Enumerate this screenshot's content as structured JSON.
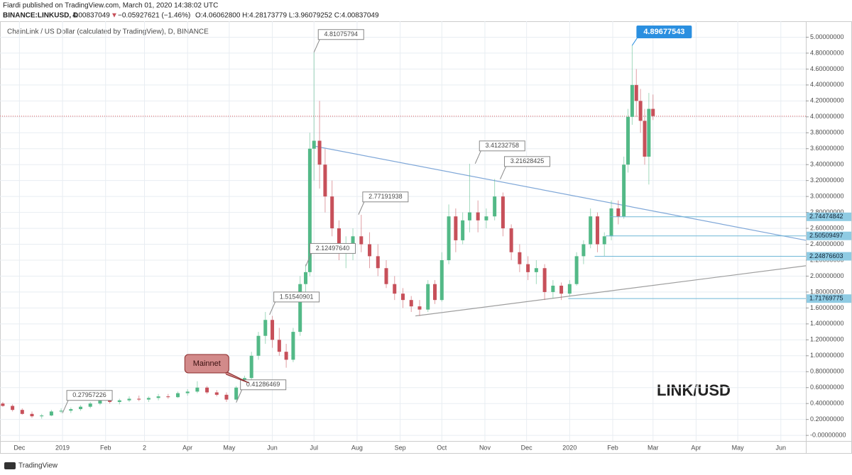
{
  "chart_data": {
    "type": "candlestick",
    "header": {
      "line1": "Fiardi published on TradingView.com, March 01, 2020 14:38:02 UTC",
      "symbol": "BINANCE:LINKUSD, D",
      "price": "4.00837049",
      "arrow": "▼",
      "change": "−0.05927621 (−1.46%)",
      "ohlc": "O:4.06062800 H:4.28173779 L:3.96079252 C:4.00837049"
    },
    "title": "ChainLink / US Dollar (calculated by TradingView), D, BINANCE",
    "watermark": "LINK/USD",
    "footer": "TradingView",
    "up_color": "#53b987",
    "down_color": "#c7505a",
    "xlim": [
      -14,
      566
    ],
    "xticks": [
      {
        "value": 0,
        "label": "Dec"
      },
      {
        "value": 31,
        "label": "2019"
      },
      {
        "value": 62,
        "label": "Feb"
      },
      {
        "value": 90,
        "label": "2"
      },
      {
        "value": 121,
        "label": "Apr"
      },
      {
        "value": 151,
        "label": "May"
      },
      {
        "value": 182,
        "label": "Jun"
      },
      {
        "value": 212,
        "label": "Jul"
      },
      {
        "value": 243,
        "label": "Aug"
      },
      {
        "value": 274,
        "label": "Sep"
      },
      {
        "value": 304,
        "label": "Oct"
      },
      {
        "value": 335,
        "label": "Nov"
      },
      {
        "value": 365,
        "label": "Dec"
      },
      {
        "value": 396,
        "label": "2020"
      },
      {
        "value": 427,
        "label": "Feb"
      },
      {
        "value": 456,
        "label": "Mar"
      },
      {
        "value": 487,
        "label": "Apr"
      },
      {
        "value": 517,
        "label": "May"
      },
      {
        "value": 548,
        "label": "Jun"
      }
    ],
    "ylim": [
      -0.07,
      5.2
    ],
    "yticks": [
      {
        "value": 0,
        "label": "-0.00000000"
      },
      {
        "value": 0.2,
        "label": "0.20000000"
      },
      {
        "value": 0.4,
        "label": "0.40000000"
      },
      {
        "value": 0.6,
        "label": "0.60000000"
      },
      {
        "value": 0.8,
        "label": "0.80000000"
      },
      {
        "value": 1,
        "label": "1.00000000"
      },
      {
        "value": 1.2,
        "label": "1.20000000"
      },
      {
        "value": 1.4,
        "label": "1.40000000"
      },
      {
        "value": 1.6,
        "label": "1.60000000"
      },
      {
        "value": 1.8,
        "label": "1.80000000"
      },
      {
        "value": 2,
        "label": "2.00000000"
      },
      {
        "value": 2.2,
        "label": "2.20000000"
      },
      {
        "value": 2.4,
        "label": "2.40000000"
      },
      {
        "value": 2.6,
        "label": "2.60000000"
      },
      {
        "value": 2.8,
        "label": "2.80000000"
      },
      {
        "value": 3,
        "label": "3.00000000"
      },
      {
        "value": 3.2,
        "label": "3.20000000"
      },
      {
        "value": 3.4,
        "label": "3.40000000"
      },
      {
        "value": 3.6,
        "label": "3.60000000"
      },
      {
        "value": 3.8,
        "label": "3.80000000"
      },
      {
        "value": 4,
        "label": "4.00000000"
      },
      {
        "value": 4.2,
        "label": "4.20000000"
      },
      {
        "value": 4.4,
        "label": "4.40000000"
      },
      {
        "value": 4.6,
        "label": "4.60000000"
      },
      {
        "value": 4.8,
        "label": "4.80000000"
      },
      {
        "value": 5,
        "label": "5.00000000"
      }
    ],
    "grid": true,
    "candles": [
      {
        "x": -12,
        "open": 0.4,
        "high": 0.42,
        "low": 0.36,
        "close": 0.37
      },
      {
        "x": -5,
        "open": 0.37,
        "high": 0.39,
        "low": 0.3,
        "close": 0.32
      },
      {
        "x": 2,
        "open": 0.32,
        "high": 0.34,
        "low": 0.26,
        "close": 0.27
      },
      {
        "x": 9,
        "open": 0.27,
        "high": 0.3,
        "low": 0.22,
        "close": 0.24
      },
      {
        "x": 16,
        "open": 0.24,
        "high": 0.27,
        "low": 0.21,
        "close": 0.25
      },
      {
        "x": 23,
        "open": 0.25,
        "high": 0.32,
        "low": 0.24,
        "close": 0.3
      },
      {
        "x": 30,
        "open": 0.3,
        "high": 0.34,
        "low": 0.28,
        "close": 0.31
      },
      {
        "x": 37,
        "open": 0.31,
        "high": 0.35,
        "low": 0.28,
        "close": 0.33
      },
      {
        "x": 44,
        "open": 0.33,
        "high": 0.38,
        "low": 0.31,
        "close": 0.36
      },
      {
        "x": 51,
        "open": 0.36,
        "high": 0.42,
        "low": 0.34,
        "close": 0.4
      },
      {
        "x": 58,
        "open": 0.4,
        "high": 0.48,
        "low": 0.38,
        "close": 0.45
      },
      {
        "x": 65,
        "open": 0.45,
        "high": 0.5,
        "low": 0.4,
        "close": 0.42
      },
      {
        "x": 72,
        "open": 0.42,
        "high": 0.46,
        "low": 0.39,
        "close": 0.44
      },
      {
        "x": 79,
        "open": 0.44,
        "high": 0.49,
        "low": 0.42,
        "close": 0.46
      },
      {
        "x": 86,
        "open": 0.46,
        "high": 0.5,
        "low": 0.43,
        "close": 0.45
      },
      {
        "x": 93,
        "open": 0.45,
        "high": 0.49,
        "low": 0.42,
        "close": 0.47
      },
      {
        "x": 100,
        "open": 0.47,
        "high": 0.52,
        "low": 0.44,
        "close": 0.49
      },
      {
        "x": 107,
        "open": 0.49,
        "high": 0.52,
        "low": 0.46,
        "close": 0.48
      },
      {
        "x": 114,
        "open": 0.48,
        "high": 0.55,
        "low": 0.47,
        "close": 0.53
      },
      {
        "x": 121,
        "open": 0.53,
        "high": 0.58,
        "low": 0.5,
        "close": 0.55
      },
      {
        "x": 128,
        "open": 0.55,
        "high": 0.68,
        "low": 0.53,
        "close": 0.6
      },
      {
        "x": 135,
        "open": 0.6,
        "high": 0.62,
        "low": 0.52,
        "close": 0.54
      },
      {
        "x": 142,
        "open": 0.54,
        "high": 0.57,
        "low": 0.49,
        "close": 0.51
      },
      {
        "x": 149,
        "open": 0.51,
        "high": 0.54,
        "low": 0.42,
        "close": 0.45
      },
      {
        "x": 156,
        "open": 0.45,
        "high": 0.62,
        "low": 0.44,
        "close": 0.6
      },
      {
        "x": 162,
        "open": 0.6,
        "high": 0.75,
        "low": 0.58,
        "close": 0.72
      },
      {
        "x": 167,
        "open": 0.72,
        "high": 1.05,
        "low": 0.7,
        "close": 1.0
      },
      {
        "x": 172,
        "open": 1.0,
        "high": 1.3,
        "low": 0.95,
        "close": 1.25
      },
      {
        "x": 177,
        "open": 1.25,
        "high": 1.55,
        "low": 1.15,
        "close": 1.45
      },
      {
        "x": 182,
        "open": 1.45,
        "high": 1.5,
        "low": 1.1,
        "close": 1.2
      },
      {
        "x": 187,
        "open": 1.2,
        "high": 1.35,
        "low": 1.0,
        "close": 1.05
      },
      {
        "x": 192,
        "open": 1.05,
        "high": 1.15,
        "low": 0.85,
        "close": 0.95
      },
      {
        "x": 197,
        "open": 0.95,
        "high": 1.35,
        "low": 0.92,
        "close": 1.3
      },
      {
        "x": 202,
        "open": 1.3,
        "high": 2.0,
        "low": 1.25,
        "close": 1.9
      },
      {
        "x": 206,
        "open": 1.9,
        "high": 2.15,
        "low": 1.75,
        "close": 2.05
      },
      {
        "x": 209,
        "open": 2.05,
        "high": 3.8,
        "low": 2.0,
        "close": 3.6
      },
      {
        "x": 212,
        "open": 3.6,
        "high": 4.81,
        "low": 3.2,
        "close": 3.7
      },
      {
        "x": 216,
        "open": 3.7,
        "high": 4.2,
        "low": 3.1,
        "close": 3.4
      },
      {
        "x": 220,
        "open": 3.4,
        "high": 3.6,
        "low": 2.8,
        "close": 3.0
      },
      {
        "x": 225,
        "open": 3.0,
        "high": 3.2,
        "low": 2.5,
        "close": 2.6
      },
      {
        "x": 230,
        "open": 2.6,
        "high": 2.7,
        "low": 2.2,
        "close": 2.3
      },
      {
        "x": 235,
        "open": 2.3,
        "high": 2.5,
        "low": 2.1,
        "close": 2.4
      },
      {
        "x": 240,
        "open": 2.4,
        "high": 2.6,
        "low": 2.2,
        "close": 2.5
      },
      {
        "x": 246,
        "open": 2.5,
        "high": 2.77,
        "low": 2.3,
        "close": 2.4
      },
      {
        "x": 252,
        "open": 2.4,
        "high": 2.55,
        "low": 2.1,
        "close": 2.25
      },
      {
        "x": 258,
        "open": 2.25,
        "high": 2.4,
        "low": 2.0,
        "close": 2.1
      },
      {
        "x": 264,
        "open": 2.1,
        "high": 2.2,
        "low": 1.85,
        "close": 1.9
      },
      {
        "x": 270,
        "open": 1.9,
        "high": 2.0,
        "low": 1.7,
        "close": 1.78
      },
      {
        "x": 276,
        "open": 1.78,
        "high": 1.85,
        "low": 1.6,
        "close": 1.7
      },
      {
        "x": 282,
        "open": 1.7,
        "high": 1.75,
        "low": 1.55,
        "close": 1.62
      },
      {
        "x": 288,
        "open": 1.62,
        "high": 1.7,
        "low": 1.5,
        "close": 1.58
      },
      {
        "x": 294,
        "open": 1.58,
        "high": 1.95,
        "low": 1.55,
        "close": 1.9
      },
      {
        "x": 299,
        "open": 1.9,
        "high": 1.95,
        "low": 1.65,
        "close": 1.7
      },
      {
        "x": 304,
        "open": 1.7,
        "high": 2.3,
        "low": 1.68,
        "close": 2.2
      },
      {
        "x": 309,
        "open": 2.2,
        "high": 2.9,
        "low": 2.15,
        "close": 2.75
      },
      {
        "x": 314,
        "open": 2.75,
        "high": 2.85,
        "low": 2.3,
        "close": 2.45
      },
      {
        "x": 319,
        "open": 2.45,
        "high": 2.8,
        "low": 2.4,
        "close": 2.7
      },
      {
        "x": 324,
        "open": 2.7,
        "high": 3.41,
        "low": 2.55,
        "close": 2.8
      },
      {
        "x": 330,
        "open": 2.8,
        "high": 2.95,
        "low": 2.55,
        "close": 2.7
      },
      {
        "x": 336,
        "open": 2.7,
        "high": 2.85,
        "low": 2.6,
        "close": 2.75
      },
      {
        "x": 342,
        "open": 2.75,
        "high": 3.22,
        "low": 2.7,
        "close": 3.0
      },
      {
        "x": 348,
        "open": 3.0,
        "high": 3.05,
        "low": 2.5,
        "close": 2.6
      },
      {
        "x": 354,
        "open": 2.6,
        "high": 2.65,
        "low": 2.2,
        "close": 2.3
      },
      {
        "x": 360,
        "open": 2.3,
        "high": 2.4,
        "low": 2.05,
        "close": 2.15
      },
      {
        "x": 366,
        "open": 2.15,
        "high": 2.25,
        "low": 1.95,
        "close": 2.05
      },
      {
        "x": 372,
        "open": 2.05,
        "high": 2.2,
        "low": 1.9,
        "close": 2.1
      },
      {
        "x": 378,
        "open": 2.1,
        "high": 2.15,
        "low": 1.7,
        "close": 1.8
      },
      {
        "x": 384,
        "open": 1.8,
        "high": 1.95,
        "low": 1.72,
        "close": 1.88
      },
      {
        "x": 390,
        "open": 1.88,
        "high": 1.92,
        "low": 1.7,
        "close": 1.78
      },
      {
        "x": 396,
        "open": 1.78,
        "high": 1.95,
        "low": 1.75,
        "close": 1.9
      },
      {
        "x": 401,
        "open": 1.9,
        "high": 2.3,
        "low": 1.88,
        "close": 2.25
      },
      {
        "x": 406,
        "open": 2.25,
        "high": 2.45,
        "low": 2.15,
        "close": 2.4
      },
      {
        "x": 411,
        "open": 2.4,
        "high": 2.85,
        "low": 2.35,
        "close": 2.75
      },
      {
        "x": 416,
        "open": 2.75,
        "high": 2.8,
        "low": 2.3,
        "close": 2.4
      },
      {
        "x": 421,
        "open": 2.4,
        "high": 2.55,
        "low": 2.25,
        "close": 2.5
      },
      {
        "x": 426,
        "open": 2.5,
        "high": 2.95,
        "low": 2.45,
        "close": 2.85
      },
      {
        "x": 431,
        "open": 2.85,
        "high": 2.95,
        "low": 2.65,
        "close": 2.75
      },
      {
        "x": 435,
        "open": 2.75,
        "high": 3.5,
        "low": 2.72,
        "close": 3.4
      },
      {
        "x": 438,
        "open": 3.4,
        "high": 4.1,
        "low": 3.3,
        "close": 4.0
      },
      {
        "x": 441,
        "open": 4.0,
        "high": 4.9,
        "low": 3.9,
        "close": 4.4
      },
      {
        "x": 444,
        "open": 4.4,
        "high": 4.6,
        "low": 4.0,
        "close": 4.2
      },
      {
        "x": 447,
        "open": 4.2,
        "high": 4.35,
        "low": 3.8,
        "close": 3.95
      },
      {
        "x": 450,
        "open": 3.95,
        "high": 4.1,
        "low": 3.4,
        "close": 3.5
      },
      {
        "x": 453,
        "open": 3.5,
        "high": 4.3,
        "low": 3.15,
        "close": 4.1
      },
      {
        "x": 456,
        "open": 4.1,
        "high": 4.28,
        "low": 3.96,
        "close": 4.01
      }
    ],
    "last_price_line": 4.00837049,
    "price_labels": [
      {
        "x": 212,
        "value": 4.81075794,
        "label": "4.81075794"
      },
      {
        "x": 206,
        "value": 2.1249764,
        "label": "2.12497640"
      },
      {
        "x": 180,
        "value": 1.51540901,
        "label": "1.51540901"
      },
      {
        "x": 156,
        "value": 0.41286469,
        "label": "0.41286469"
      },
      {
        "x": 31,
        "value": 0.27957226,
        "label": "0.27957226"
      },
      {
        "x": 244,
        "value": 2.77191938,
        "label": "2.77191938"
      },
      {
        "x": 328,
        "value": 3.41232758,
        "label": "3.41232758"
      },
      {
        "x": 346,
        "value": 3.21628425,
        "label": "3.21628425"
      }
    ],
    "high_label": {
      "x": 441,
      "value": 4.89677543,
      "label": "4.89677543"
    },
    "levels": [
      {
        "from": 425,
        "value": 2.74474842,
        "label": "2.74474842"
      },
      {
        "from": 422,
        "value": 2.50509497,
        "label": "2.50509497"
      },
      {
        "from": 414,
        "value": 2.24876603,
        "label": "2.24876603"
      },
      {
        "from": 395,
        "value": 1.71769775,
        "label": "1.71769775"
      }
    ],
    "trend_lines": [
      {
        "x": [
          213,
          566
        ],
        "y": [
          3.63,
          2.45
        ],
        "color": "#7fa7d8"
      },
      {
        "x": [
          285,
          566
        ],
        "y": [
          1.5,
          2.13
        ],
        "color": "#9e9e9e"
      }
    ],
    "callout": {
      "text": "Mainnet",
      "x": 165,
      "value": 0.66
    }
  }
}
